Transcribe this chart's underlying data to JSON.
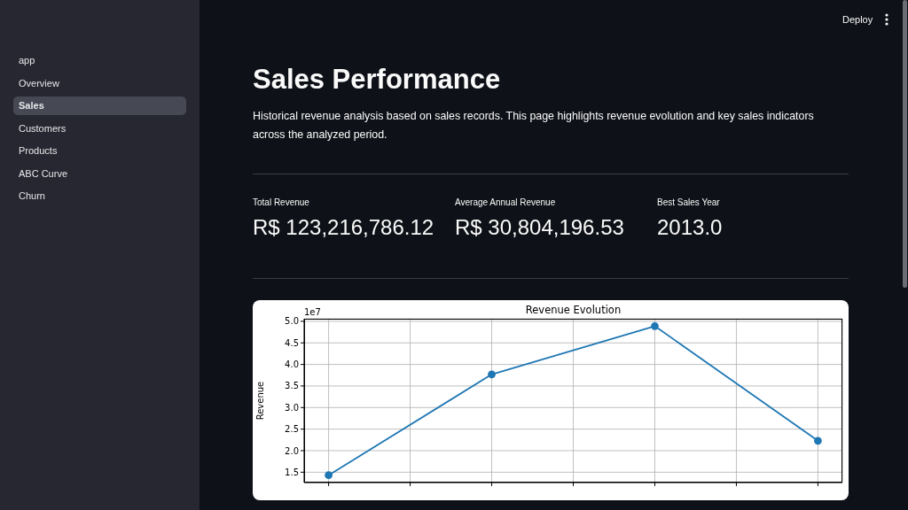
{
  "chart_data": [
    {
      "type": "other",
      "title": "Sales Performance",
      "subtitle": "Historical revenue analysis based on sales records. This page highlights revenue evolution and key sales indicators across the analyzed period.",
      "categories": [
        "Total Revenue",
        "Average Annual Revenue",
        "Best Sales Year"
      ],
      "value_labels": [
        "R$ 123,216,786.12",
        "R$ 30,804,196.53",
        "2013.0"
      ],
      "annotations": [
        "app",
        "Overview",
        "Sales",
        "Customers",
        "Products",
        "ABC Curve",
        "Churn",
        "Deploy"
      ]
    },
    {
      "type": "line",
      "title": "Revenue Evolution",
      "ylabel": "Revenue",
      "annotations": [
        "1e7"
      ],
      "categories": [
        null,
        null,
        null,
        null
      ],
      "values": [
        1.43,
        3.77,
        4.89,
        2.23
      ],
      "color": "#1f77b4",
      "marker": "circle",
      "line_style": "solid",
      "grid": true,
      "ylim": [
        1.26,
        5.06
      ],
      "yticks": [
        {
          "value": 1.5,
          "label": "1.5"
        },
        {
          "value": 2,
          "label": "2.0"
        },
        {
          "value": 2.5,
          "label": "2.5"
        },
        {
          "value": 3,
          "label": "3.0"
        },
        {
          "value": 3.5,
          "label": "3.5"
        },
        {
          "value": 4,
          "label": "4.0"
        },
        {
          "value": 4.5,
          "label": "4.5"
        },
        {
          "value": 5,
          "label": "5.0"
        }
      ]
    }
  ]
}
